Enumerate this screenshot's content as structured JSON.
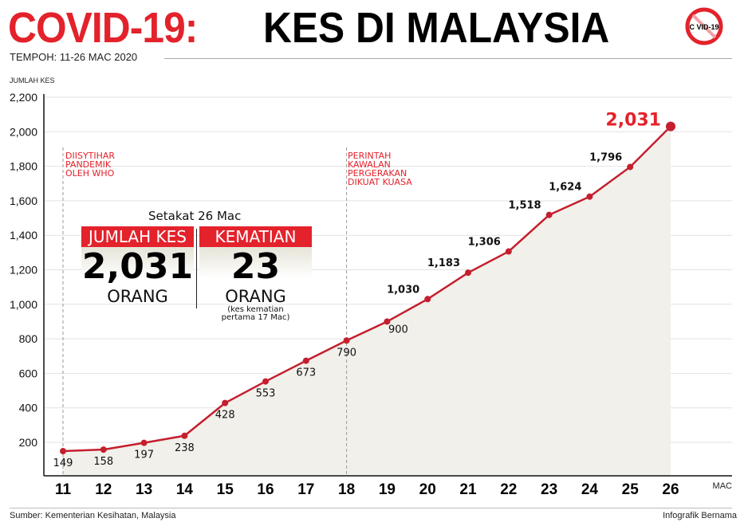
{
  "header": {
    "title_red": "COVID-19:",
    "title_black": "KES DI MALAYSIA",
    "badge_text": "C VID-19",
    "period": "TEMPOH: 11-26 MAC 2020"
  },
  "summary": {
    "as_of": "Setakat 26 Mac",
    "cases_label": "JUMLAH KES",
    "cases_value": "2,031",
    "cases_unit": "ORANG",
    "deaths_label": "KEMATIAN",
    "deaths_value": "23",
    "deaths_unit": "ORANG",
    "deaths_note_1": "(kes kematian",
    "deaths_note_2": "pertama 17 Mac)"
  },
  "annotations": [
    {
      "x": 11,
      "lines": [
        "DIISYTIHAR",
        "PANDEMIK",
        "OLEH WHO"
      ]
    },
    {
      "x": 18,
      "lines": [
        "PERINTAH",
        "KAWALAN",
        "PERGERAKAN",
        "DIKUAT KUASA"
      ]
    }
  ],
  "colors": {
    "accent": "#e3222b",
    "line": "#c41f2e",
    "fill": "#f1f0ea",
    "grid": "#e2e2e2"
  },
  "footer": {
    "source": "Sumber: Kementerian Kesihatan, Malaysia",
    "credit": "Infografik Bernama"
  },
  "chart_data": {
    "type": "line",
    "title": "COVID-19: KES DI MALAYSIA",
    "subtitle": "TEMPOH: 11-26 MAC 2020",
    "xlabel": "MAC",
    "ylabel": "JUMLAH KES",
    "ylim": [
      0,
      2200
    ],
    "grid": true,
    "y_ticks": [
      200,
      400,
      600,
      800,
      1000,
      1200,
      1400,
      1600,
      1800,
      2000,
      2200
    ],
    "y_tick_labels": [
      "200",
      "400",
      "600",
      "800",
      "1,000",
      "1,200",
      "1,400",
      "1,600",
      "1,800",
      "2,000",
      "2,200"
    ],
    "x": [
      11,
      12,
      13,
      14,
      15,
      16,
      17,
      18,
      19,
      20,
      21,
      22,
      23,
      24,
      25,
      26
    ],
    "x_tick_labels": [
      "11",
      "12",
      "13",
      "14",
      "15",
      "16",
      "17",
      "18",
      "19",
      "20",
      "21",
      "22",
      "23",
      "24",
      "25",
      "26"
    ],
    "series": [
      {
        "name": "Jumlah Kes",
        "values": [
          149,
          158,
          197,
          238,
          428,
          553,
          673,
          790,
          900,
          1030,
          1183,
          1306,
          1518,
          1624,
          1796,
          2031
        ],
        "labels": [
          "149",
          "158",
          "197",
          "238",
          "428",
          "553",
          "673",
          "790",
          "900",
          "1,030",
          "1,183",
          "1,306",
          "1,518",
          "1,624",
          "1,796",
          "2,031"
        ]
      }
    ]
  }
}
